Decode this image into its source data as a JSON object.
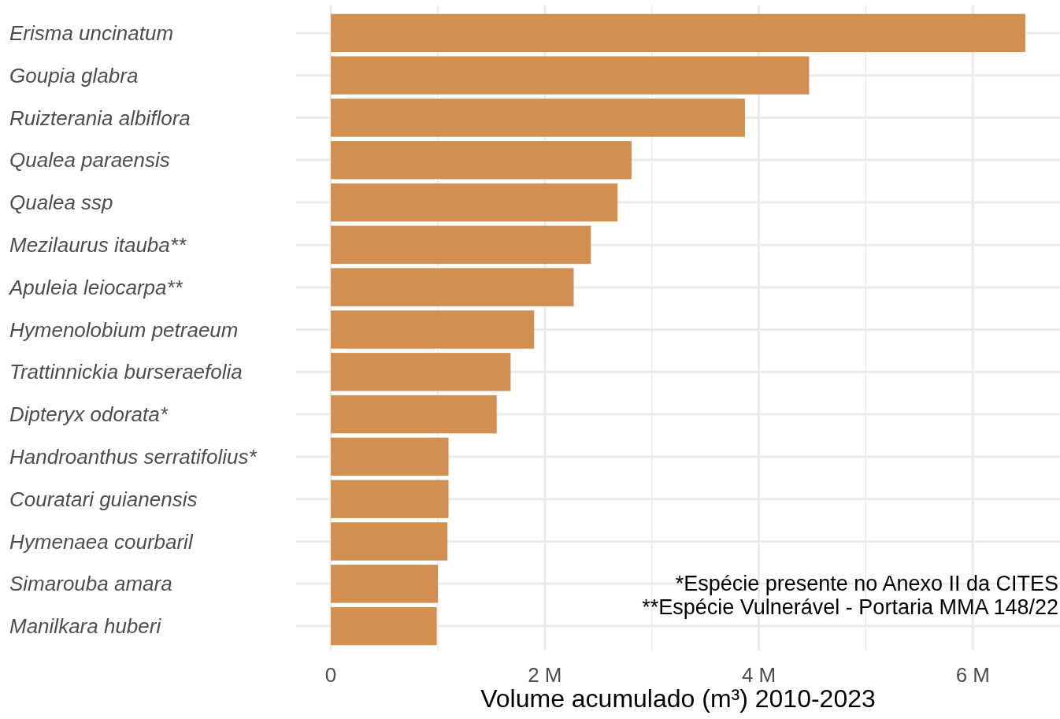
{
  "chart_data": {
    "type": "bar",
    "orientation": "horizontal",
    "xlabel": "Volume acumulado (m³) 2010-2023",
    "categories": [
      "Erisma uncinatum",
      "Goupia glabra",
      "Ruizterania albiflora",
      "Qualea paraensis",
      "Qualea ssp",
      "Mezilaurus itauba**",
      "Apuleia leiocarpa**",
      "Hymenolobium petraeum",
      "Trattinnickia burseraefolia",
      "Dipteryx odorata*",
      "Handroanthus serratifolius*",
      "Couratari guianensis",
      "Hymenaea courbaril",
      "Simarouba amara",
      "Manilkara huberi"
    ],
    "values": [
      6490000,
      4470000,
      3870000,
      2810000,
      2680000,
      2430000,
      2270000,
      1900000,
      1680000,
      1550000,
      1100000,
      1100000,
      1090000,
      1000000,
      990000
    ],
    "color": "#d18f51",
    "xlim": [
      -324500,
      6814500
    ],
    "xticks": [
      {
        "value": 0,
        "label": "0"
      },
      {
        "value": 1000000,
        "label": null
      },
      {
        "value": 2000000,
        "label": "2 M"
      },
      {
        "value": 3000000,
        "label": null
      },
      {
        "value": 4000000,
        "label": "4 M"
      },
      {
        "value": 5000000,
        "label": null
      },
      {
        "value": 6000000,
        "label": "6 M"
      }
    ],
    "grid": true,
    "annotations": [
      "*Espécie presente no Anexo II da CITES",
      "**Espécie Vulnerável - Portaria MMA 148/22"
    ]
  }
}
